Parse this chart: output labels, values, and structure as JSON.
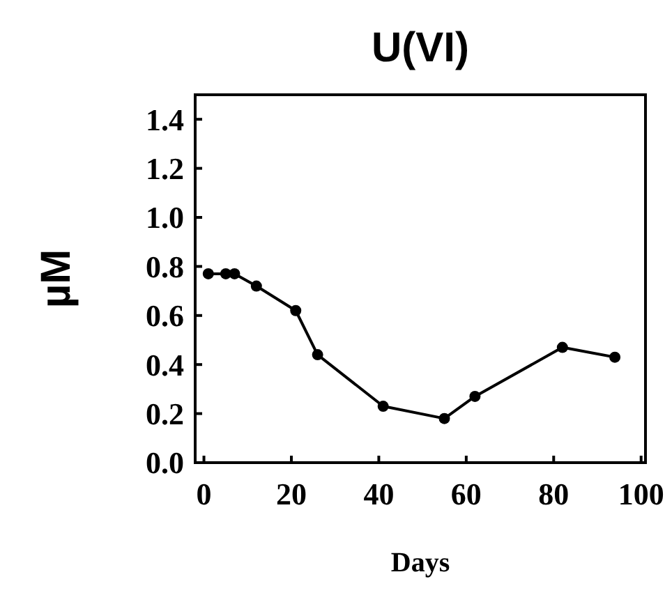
{
  "chart_data": {
    "type": "line",
    "title": "U(VI)",
    "xlabel": "Days",
    "ylabel": "µM",
    "x": [
      1,
      5,
      7,
      12,
      21,
      26,
      41,
      55,
      62,
      82,
      94
    ],
    "values": [
      0.77,
      0.77,
      0.77,
      0.72,
      0.62,
      0.44,
      0.23,
      0.18,
      0.27,
      0.47,
      0.43
    ],
    "color": "#000000",
    "marker": "circle",
    "line_style": "solid",
    "grid": false,
    "xlim": [
      -2,
      101
    ],
    "xticks": [
      0,
      20,
      40,
      60,
      80,
      100
    ],
    "ylim": [
      0,
      1.5
    ],
    "yticks": [
      {
        "value": 0,
        "label": "0.0"
      },
      {
        "value": 0.2,
        "label": "0.2"
      },
      {
        "value": 0.4,
        "label": "0.4"
      },
      {
        "value": 0.6,
        "label": "0.6"
      },
      {
        "value": 0.8,
        "label": "0.8"
      },
      {
        "value": 1,
        "label": "1.0"
      },
      {
        "value": 1.2,
        "label": "1.2"
      },
      {
        "value": 1.4,
        "label": "1.4"
      }
    ]
  }
}
